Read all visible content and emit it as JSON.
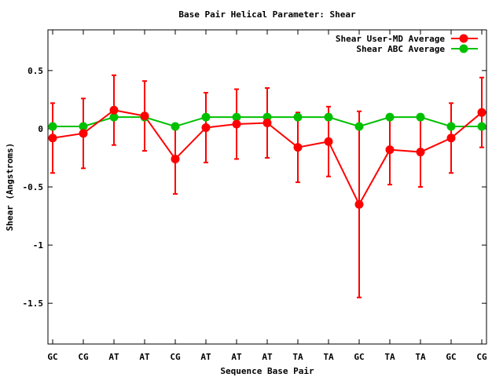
{
  "chart_data": {
    "type": "line",
    "title": "Base Pair Helical Parameter: Shear",
    "xlabel": "Sequence Base Pair",
    "ylabel": "Shear (Angstroms)",
    "ylim": [
      -1.85,
      0.85
    ],
    "yticks": [
      0.5,
      0,
      -0.5,
      -1,
      -1.5
    ],
    "ytick_labels": [
      "0.5",
      "0",
      "-0.5",
      "-1",
      "-1.5"
    ],
    "grid": false,
    "legend_position": "top-right",
    "categories": [
      "GC",
      "CG",
      "AT",
      "AT",
      "CG",
      "AT",
      "AT",
      "AT",
      "TA",
      "TA",
      "GC",
      "TA",
      "TA",
      "GC",
      "CG"
    ],
    "series": [
      {
        "name": "Shear User-MD Average",
        "color": "#ff0000",
        "marker": "circle",
        "values": [
          -0.08,
          -0.04,
          0.16,
          0.11,
          -0.26,
          0.01,
          0.04,
          0.05,
          -0.16,
          -0.11,
          -0.65,
          -0.18,
          -0.2,
          -0.08,
          0.14
        ],
        "error": [
          0.3,
          0.3,
          0.3,
          0.3,
          0.3,
          0.3,
          0.3,
          0.3,
          0.3,
          0.3,
          0.8,
          0.3,
          0.3,
          0.3,
          0.3
        ]
      },
      {
        "name": "Shear ABC Average",
        "color": "#00c000",
        "marker": "circle",
        "values": [
          0.02,
          0.02,
          0.1,
          0.1,
          0.02,
          0.1,
          0.1,
          0.1,
          0.1,
          0.1,
          0.02,
          0.1,
          0.1,
          0.02,
          0.02
        ]
      }
    ]
  }
}
